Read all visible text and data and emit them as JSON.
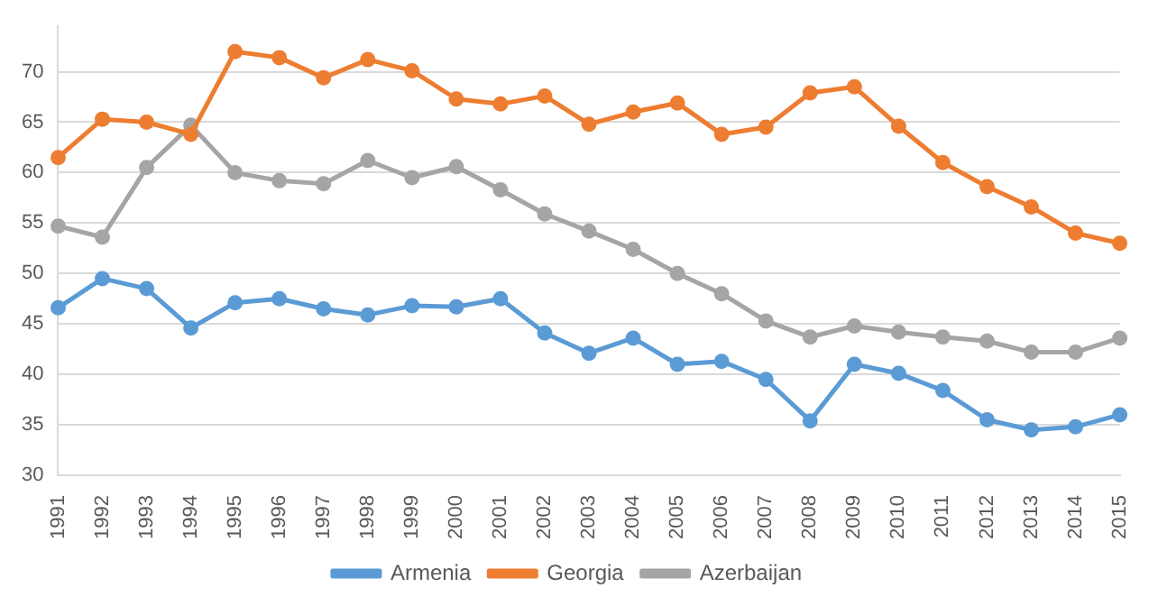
{
  "chart_data": {
    "type": "line",
    "categories": [
      "1991",
      "1992",
      "1993",
      "1994",
      "1995",
      "1996",
      "1997",
      "1998",
      "1999",
      "2000",
      "2001",
      "2002",
      "2003",
      "2004",
      "2005",
      "2006",
      "2007",
      "2008",
      "2009",
      "2010",
      "2011",
      "2012",
      "2013",
      "2014",
      "2015"
    ],
    "series": [
      {
        "name": "Armenia",
        "color": "#5b9bd5",
        "values": [
          46.6,
          49.5,
          48.5,
          44.6,
          47.1,
          47.5,
          46.5,
          45.9,
          46.8,
          46.7,
          47.5,
          44.1,
          42.1,
          43.6,
          41.0,
          41.3,
          39.5,
          35.4,
          41.0,
          40.1,
          38.4,
          35.5,
          34.5,
          34.8,
          36.0
        ]
      },
      {
        "name": "Georgia",
        "color": "#ed7d31",
        "values": [
          61.5,
          65.3,
          65.0,
          63.8,
          72.0,
          71.4,
          69.4,
          71.2,
          70.1,
          67.3,
          66.8,
          67.6,
          64.8,
          66.0,
          66.9,
          63.8,
          64.5,
          67.9,
          68.5,
          64.6,
          61.0,
          58.6,
          56.6,
          54.0,
          53.0
        ]
      },
      {
        "name": "Azerbaijan",
        "color": "#a5a5a5",
        "values": [
          54.7,
          53.6,
          60.5,
          64.7,
          60.0,
          59.2,
          58.9,
          61.2,
          59.5,
          60.6,
          58.3,
          55.9,
          54.2,
          52.4,
          50.0,
          48.0,
          45.3,
          43.7,
          44.8,
          44.2,
          43.7,
          43.3,
          42.2,
          42.2,
          43.6
        ]
      }
    ],
    "ylim": [
      30,
      74.5
    ],
    "yticks": [
      30,
      35,
      40,
      45,
      50,
      55,
      60,
      65,
      70
    ],
    "grid": "y",
    "legend": "bottom",
    "marker": "circle",
    "line_style": "solid"
  }
}
